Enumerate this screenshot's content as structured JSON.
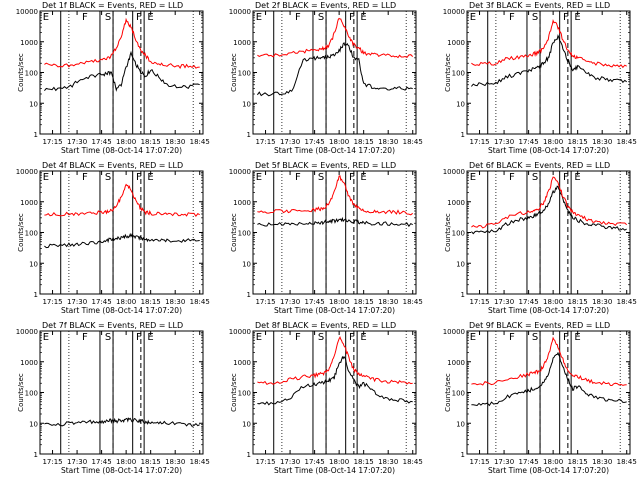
{
  "figure": {
    "xtick_labels": [
      "17:15",
      "17:30",
      "17:45",
      "18:00",
      "18:15",
      "18:30",
      "18:45"
    ],
    "ytick_labels": [
      "1",
      "10",
      "100",
      "1000",
      "10000"
    ],
    "ylabel": "Counts/sec",
    "xlabel": "Start Time (08-Oct-14 17:07:20)",
    "colors": {
      "events": "#000000",
      "lld": "#ff0000",
      "frame": "#000000"
    }
  },
  "chart_data": [
    {
      "type": "line",
      "title": "Det 1f BLACK = Events, RED = LLD",
      "xlabel": "Start Time (08-Oct-14 17:07:20)",
      "ylabel": "Counts/sec",
      "xlim": [
        "17:07:20",
        "18:47:00"
      ],
      "ylim": [
        1,
        10000
      ],
      "yscale": "log",
      "region_labels": [
        "E",
        "F",
        "S",
        "F",
        "E"
      ],
      "x": [
        "17:10",
        "17:17",
        "17:25",
        "17:31",
        "17:38",
        "17:44",
        "17:48",
        "17:51",
        "17:54",
        "17:57",
        "18:00",
        "18:03",
        "18:06",
        "18:09",
        "18:12",
        "18:15",
        "18:20",
        "18:25",
        "18:32",
        "18:38",
        "18:45"
      ],
      "series": [
        {
          "name": "Events",
          "values": [
            28,
            30,
            32,
            55,
            75,
            85,
            90,
            100,
            30,
            40,
            150,
            400,
            180,
            100,
            80,
            120,
            70,
            40,
            35,
            35,
            40
          ]
        },
        {
          "name": "LLD",
          "values": [
            180,
            170,
            170,
            200,
            220,
            250,
            280,
            350,
            600,
            1500,
            5000,
            3000,
            1200,
            500,
            350,
            220,
            200,
            180,
            160,
            160,
            150
          ]
        }
      ]
    },
    {
      "type": "line",
      "title": "Det 2f BLACK = Events, RED = LLD",
      "xlabel": "Start Time (08-Oct-14 17:07:20)",
      "ylabel": "Counts/sec",
      "xlim": [
        "17:07:20",
        "18:47:00"
      ],
      "ylim": [
        1,
        10000
      ],
      "yscale": "log",
      "region_labels": [
        "E",
        "F",
        "S",
        "F",
        "E"
      ],
      "x": [
        "17:10",
        "17:17",
        "17:25",
        "17:31",
        "17:38",
        "17:44",
        "17:48",
        "17:51",
        "17:54",
        "17:57",
        "18:00",
        "18:03",
        "18:06",
        "18:09",
        "18:12",
        "18:15",
        "18:20",
        "18:25",
        "18:32",
        "18:38",
        "18:45"
      ],
      "series": [
        {
          "name": "Events",
          "values": [
            20,
            20,
            22,
            25,
            250,
            280,
            300,
            300,
            320,
            400,
            500,
            900,
            700,
            300,
            250,
            40,
            35,
            30,
            30,
            30,
            30
          ]
        },
        {
          "name": "LLD",
          "values": [
            350,
            360,
            380,
            420,
            480,
            520,
            560,
            600,
            800,
            1800,
            6000,
            3500,
            1500,
            800,
            650,
            420,
            380,
            360,
            350,
            340,
            330
          ]
        }
      ]
    },
    {
      "type": "line",
      "title": "Det 3f BLACK = Events, RED = LLD",
      "xlabel": "Start Time (08-Oct-14 17:07:20)",
      "ylabel": "Counts/sec",
      "xlim": [
        "17:07:20",
        "18:47:00"
      ],
      "ylim": [
        1,
        10000
      ],
      "yscale": "log",
      "region_labels": [
        "E",
        "F",
        "S",
        "F",
        "E"
      ],
      "x": [
        "17:10",
        "17:17",
        "17:25",
        "17:31",
        "17:38",
        "17:44",
        "17:48",
        "17:51",
        "17:54",
        "17:57",
        "18:00",
        "18:03",
        "18:06",
        "18:09",
        "18:12",
        "18:15",
        "18:20",
        "18:25",
        "18:32",
        "18:38",
        "18:45"
      ],
      "series": [
        {
          "name": "Events",
          "values": [
            40,
            42,
            45,
            70,
            90,
            110,
            130,
            150,
            200,
            300,
            900,
            1500,
            600,
            250,
            120,
            150,
            100,
            70,
            60,
            55,
            50
          ]
        },
        {
          "name": "LLD",
          "values": [
            180,
            190,
            200,
            280,
            300,
            350,
            400,
            450,
            600,
            1200,
            5000,
            3000,
            1200,
            500,
            350,
            300,
            250,
            200,
            180,
            170,
            160
          ]
        }
      ]
    },
    {
      "type": "line",
      "title": "Det 4f BLACK = Events, RED = LLD",
      "xlabel": "Start Time (08-Oct-14 17:07:20)",
      "ylabel": "Counts/sec",
      "xlim": [
        "17:07:20",
        "18:47:00"
      ],
      "ylim": [
        1,
        10000
      ],
      "yscale": "log",
      "region_labels": [
        "E",
        "F",
        "S",
        "F",
        "E"
      ],
      "x": [
        "17:10",
        "17:17",
        "17:25",
        "17:31",
        "17:38",
        "17:44",
        "17:48",
        "17:51",
        "17:54",
        "17:57",
        "18:00",
        "18:03",
        "18:06",
        "18:09",
        "18:12",
        "18:15",
        "18:20",
        "18:25",
        "18:32",
        "18:38",
        "18:45"
      ],
      "series": [
        {
          "name": "Events",
          "values": [
            35,
            38,
            40,
            42,
            45,
            50,
            55,
            60,
            65,
            70,
            75,
            80,
            70,
            65,
            60,
            55,
            55,
            55,
            55,
            55,
            55
          ]
        },
        {
          "name": "LLD",
          "values": [
            400,
            400,
            400,
            410,
            420,
            450,
            480,
            520,
            700,
            1500,
            3500,
            2500,
            1000,
            600,
            450,
            420,
            400,
            400,
            400,
            390,
            380
          ]
        }
      ]
    },
    {
      "type": "line",
      "title": "Det 5f BLACK = Events, RED = LLD",
      "xlabel": "Start Time (08-Oct-14 17:07:20)",
      "ylabel": "Counts/sec",
      "xlim": [
        "17:07:20",
        "18:47:00"
      ],
      "ylim": [
        1,
        10000
      ],
      "yscale": "log",
      "region_labels": [
        "E",
        "F",
        "S",
        "F",
        "E"
      ],
      "x": [
        "17:10",
        "17:17",
        "17:25",
        "17:31",
        "17:38",
        "17:44",
        "17:48",
        "17:51",
        "17:54",
        "17:57",
        "18:00",
        "18:03",
        "18:06",
        "18:09",
        "18:12",
        "18:15",
        "18:20",
        "18:25",
        "18:32",
        "18:38",
        "18:45"
      ],
      "series": [
        {
          "name": "Events",
          "values": [
            180,
            180,
            185,
            190,
            200,
            205,
            210,
            220,
            230,
            240,
            250,
            250,
            240,
            230,
            220,
            210,
            200,
            195,
            190,
            185,
            180
          ]
        },
        {
          "name": "LLD",
          "values": [
            480,
            480,
            490,
            500,
            520,
            550,
            580,
            620,
            900,
            2000,
            7000,
            4000,
            1500,
            800,
            600,
            520,
            500,
            480,
            470,
            450,
            420
          ]
        }
      ]
    },
    {
      "type": "line",
      "title": "Det 6f BLACK = Events, RED = LLD",
      "xlabel": "Start Time (08-Oct-14 17:07:20)",
      "ylabel": "Counts/sec",
      "xlim": [
        "17:07:20",
        "18:47:00"
      ],
      "ylim": [
        1,
        10000
      ],
      "yscale": "log",
      "region_labels": [
        "E",
        "F",
        "S",
        "F",
        "E"
      ],
      "x": [
        "17:10",
        "17:17",
        "17:25",
        "17:31",
        "17:38",
        "17:44",
        "17:48",
        "17:51",
        "17:54",
        "17:57",
        "18:00",
        "18:03",
        "18:06",
        "18:09",
        "18:12",
        "18:15",
        "18:20",
        "18:25",
        "18:32",
        "18:38",
        "18:45"
      ],
      "series": [
        {
          "name": "Events",
          "values": [
            100,
            105,
            110,
            180,
            250,
            300,
            350,
            400,
            500,
            800,
            2000,
            3000,
            1200,
            500,
            300,
            250,
            200,
            180,
            150,
            140,
            130
          ]
        },
        {
          "name": "LLD",
          "values": [
            150,
            160,
            180,
            300,
            400,
            450,
            500,
            600,
            900,
            2000,
            6000,
            4000,
            1500,
            700,
            450,
            350,
            280,
            220,
            200,
            190,
            180
          ]
        }
      ]
    },
    {
      "type": "line",
      "title": "Det 7f BLACK = Events, RED = LLD",
      "xlabel": "Start Time (08-Oct-14 17:07:20)",
      "ylabel": "Counts/sec",
      "xlim": [
        "17:07:20",
        "18:47:00"
      ],
      "ylim": [
        1,
        10000
      ],
      "yscale": "log",
      "region_labels": [
        "E",
        "F",
        "S",
        "F",
        "E"
      ],
      "x": [
        "17:10",
        "17:17",
        "17:25",
        "17:31",
        "17:38",
        "17:44",
        "17:48",
        "17:51",
        "17:54",
        "17:57",
        "18:00",
        "18:03",
        "18:06",
        "18:09",
        "18:12",
        "18:15",
        "18:20",
        "18:25",
        "18:32",
        "18:38",
        "18:45"
      ],
      "series": [
        {
          "name": "Events",
          "values": [
            9,
            9,
            10,
            10,
            11,
            11,
            12,
            12,
            12,
            12,
            13,
            13,
            12,
            12,
            11,
            11,
            10,
            10,
            10,
            9,
            9
          ]
        }
      ]
    },
    {
      "type": "line",
      "title": "Det 8f BLACK = Events, RED = LLD",
      "xlabel": "Start Time (08-Oct-14 17:07:20)",
      "ylabel": "Counts/sec",
      "xlim": [
        "17:07:20",
        "18:47:00"
      ],
      "ylim": [
        1,
        10000
      ],
      "yscale": "log",
      "region_labels": [
        "E",
        "F",
        "S",
        "F",
        "E"
      ],
      "x": [
        "17:10",
        "17:17",
        "17:25",
        "17:31",
        "17:38",
        "17:44",
        "17:48",
        "17:51",
        "17:54",
        "17:57",
        "18:00",
        "18:03",
        "18:06",
        "18:09",
        "18:12",
        "18:15",
        "18:20",
        "18:25",
        "18:32",
        "18:38",
        "18:45"
      ],
      "series": [
        {
          "name": "Events",
          "values": [
            45,
            45,
            50,
            70,
            160,
            180,
            200,
            220,
            250,
            300,
            900,
            1500,
            500,
            250,
            150,
            200,
            120,
            80,
            60,
            55,
            50
          ]
        },
        {
          "name": "LLD",
          "values": [
            200,
            200,
            210,
            280,
            320,
            350,
            380,
            420,
            600,
            1500,
            6000,
            3500,
            1300,
            550,
            400,
            350,
            280,
            240,
            220,
            210,
            200
          ]
        }
      ]
    },
    {
      "type": "line",
      "title": "Det 9f BLACK = Events, RED = LLD",
      "xlabel": "Start Time (08-Oct-14 17:07:20)",
      "ylabel": "Counts/sec",
      "xlim": [
        "17:07:20",
        "18:47:00"
      ],
      "ylim": [
        1,
        10000
      ],
      "yscale": "log",
      "region_labels": [
        "E",
        "F",
        "S",
        "F",
        "E"
      ],
      "x": [
        "17:10",
        "17:17",
        "17:25",
        "17:31",
        "17:38",
        "17:44",
        "17:48",
        "17:51",
        "17:54",
        "17:57",
        "18:00",
        "18:03",
        "18:06",
        "18:09",
        "18:12",
        "18:15",
        "18:20",
        "18:25",
        "18:32",
        "18:38",
        "18:45"
      ],
      "series": [
        {
          "name": "Events",
          "values": [
            40,
            42,
            45,
            70,
            90,
            110,
            130,
            160,
            220,
            350,
            1200,
            1800,
            700,
            280,
            130,
            160,
            100,
            70,
            60,
            55,
            50
          ]
        },
        {
          "name": "LLD",
          "values": [
            200,
            200,
            210,
            280,
            320,
            380,
            420,
            480,
            700,
            1600,
            5500,
            3200,
            1200,
            520,
            380,
            320,
            260,
            220,
            200,
            190,
            180
          ]
        }
      ]
    }
  ]
}
